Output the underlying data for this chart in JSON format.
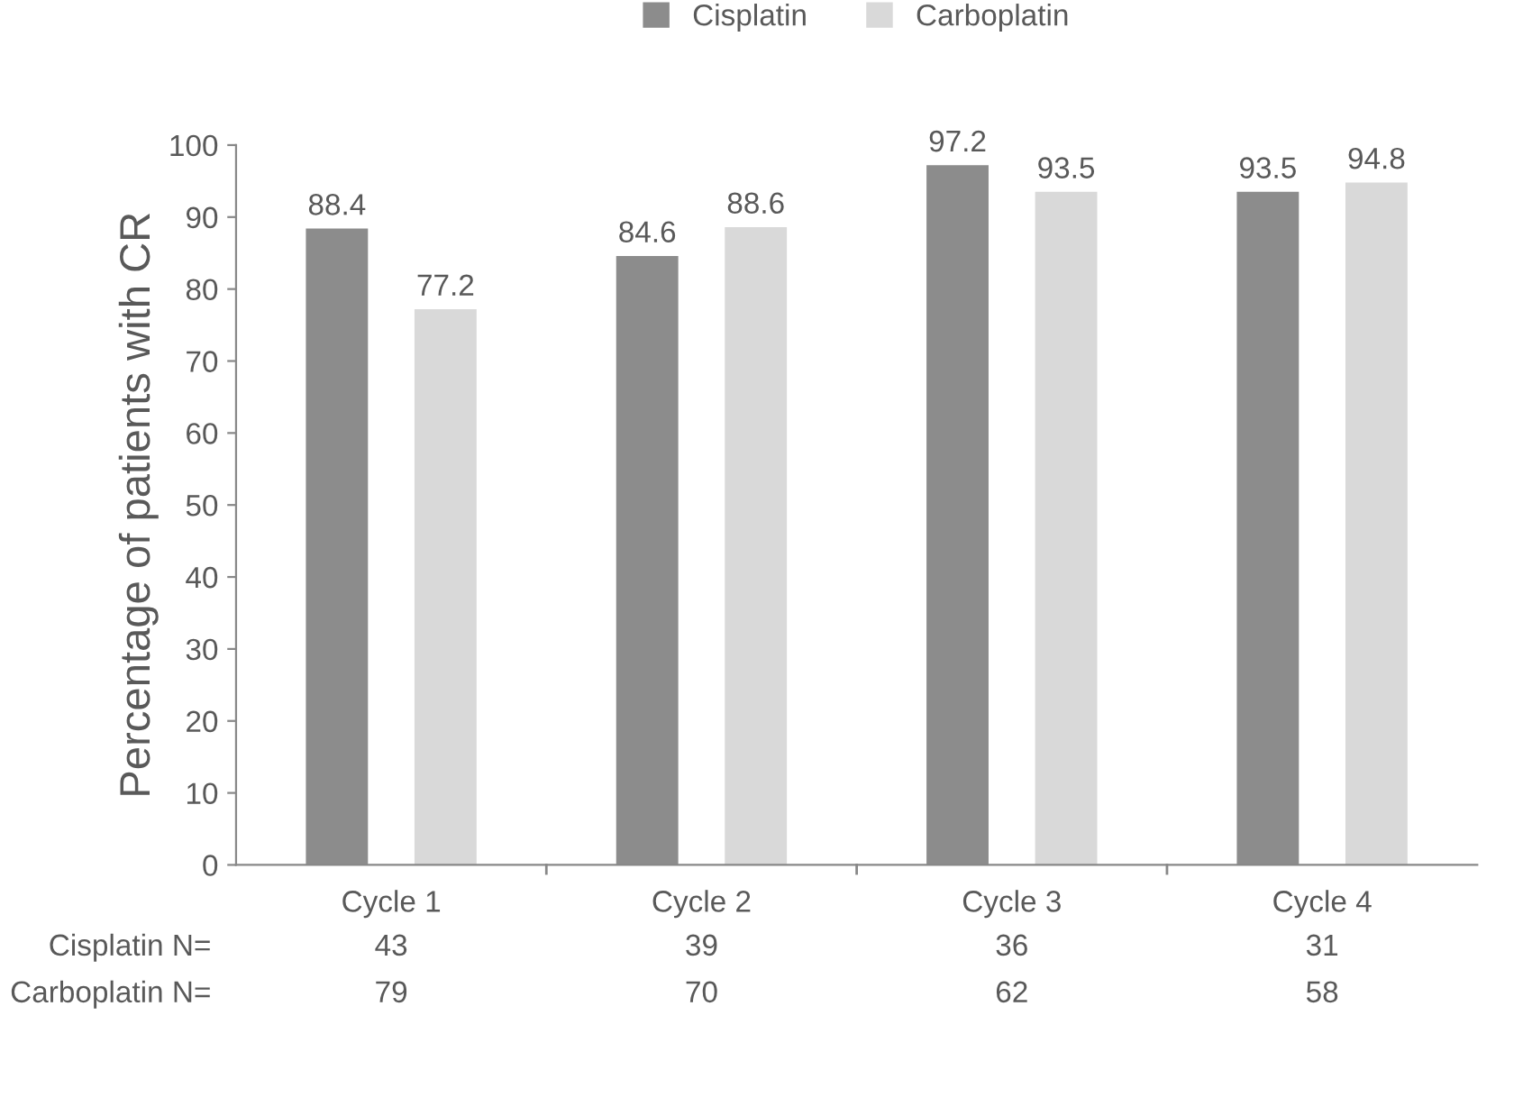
{
  "chart_data": {
    "type": "bar",
    "ylabel": "Percentage of patients with CR",
    "categories": [
      "Cycle 1",
      "Cycle 2",
      "Cycle 3",
      "Cycle 4"
    ],
    "series": [
      {
        "name": "Cisplatin",
        "color": "#8c8c8c",
        "values": [
          88.4,
          84.6,
          97.2,
          93.5
        ]
      },
      {
        "name": "Carboplatin",
        "color": "#d9d9d9",
        "values": [
          77.2,
          88.6,
          93.5,
          94.8
        ]
      }
    ],
    "ylim": [
      0,
      100
    ],
    "yticks": [
      0,
      10,
      20,
      30,
      40,
      50,
      60,
      70,
      80,
      90,
      100
    ],
    "data_labels": true,
    "legend": "top",
    "grid": false,
    "annotations": [
      "Cisplatin N=",
      "43",
      "39",
      "36",
      "31",
      "Carboplatin N=",
      "79",
      "70",
      "62",
      "58"
    ]
  }
}
